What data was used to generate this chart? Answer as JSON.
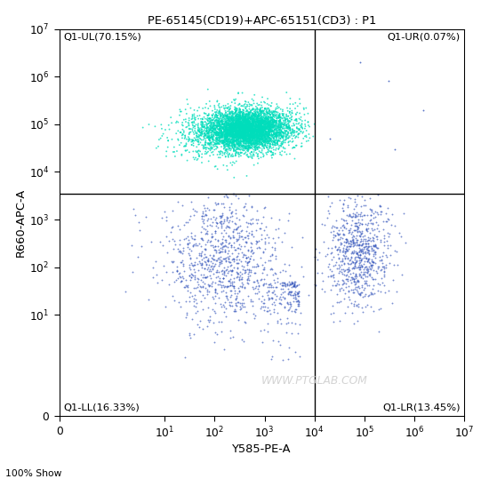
{
  "title": "PE-65145(CD19)+APC-65151(CD3) : P1",
  "xlabel": "Y585-PE-A",
  "ylabel": "R660-APC-A",
  "xlim_lo": 0,
  "xlim_hi": 10000000.0,
  "ylim_lo": 0,
  "ylim_hi": 10000000.0,
  "linthresh": 1,
  "quadrant_line_x": 10000.0,
  "quadrant_line_y": 3500,
  "quadrant_labels": {
    "UL": "Q1-UL(70.15%)",
    "UR": "Q1-UR(0.07%)",
    "LL": "Q1-LL(16.33%)",
    "LR": "Q1-LR(13.45%)"
  },
  "x_ticks": [
    0,
    10,
    100,
    1000,
    10000,
    100000,
    1000000,
    10000000
  ],
  "y_ticks": [
    0,
    10,
    100,
    1000,
    10000,
    100000,
    1000000,
    10000000
  ],
  "tick_labels": [
    "0",
    "10^1",
    "10^2",
    "10^3",
    "10^4",
    "10^5",
    "10^6",
    "10^7"
  ],
  "watermark": "WWW.PTGLAB.COM",
  "footnote": "100% Show",
  "background_color": "#ffffff",
  "title_fontsize": 8.5,
  "axis_label_fontsize": 8.5,
  "tick_fontsize": 8,
  "quadrant_label_fontsize": 7.5,
  "n_points_UL": 4000,
  "n_points_LL": 900,
  "n_points_LR": 750,
  "n_points_UR": 4,
  "seed": 42
}
